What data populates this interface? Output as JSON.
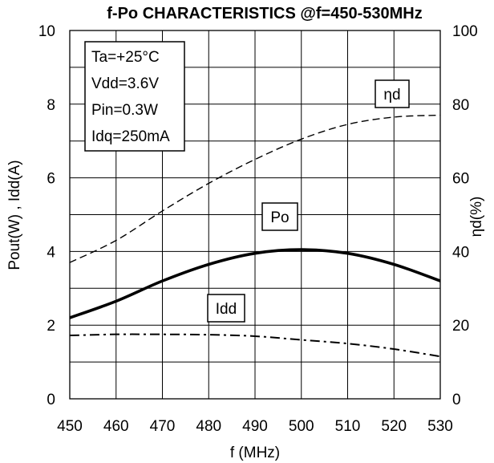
{
  "chart_data": {
    "type": "line",
    "title": "f-Po CHARACTERISTICS @f=450-530MHz",
    "xlabel": "f (MHz)",
    "ylabel_left": "Pout(W) , Idd(A)",
    "ylabel_right": "ηd(%)",
    "xlim": [
      450,
      530
    ],
    "ylim_left": [
      0,
      10
    ],
    "ylim_right": [
      0,
      100
    ],
    "x_ticks": [
      450,
      460,
      470,
      480,
      490,
      500,
      510,
      520,
      530
    ],
    "y_left_ticks": [
      0,
      2,
      4,
      6,
      8,
      10
    ],
    "y_right_ticks": [
      0,
      20,
      40,
      60,
      80,
      100
    ],
    "grid": true,
    "conditions": [
      "Ta=+25°C",
      "Vdd=3.6V",
      "Pin=0.3W",
      "Idq=250mA"
    ],
    "series": [
      {
        "name": "Po",
        "axis": "left",
        "style": "solid",
        "x": [
          450,
          460,
          470,
          480,
          490,
          500,
          510,
          520,
          530
        ],
        "values": [
          2.2,
          2.65,
          3.2,
          3.65,
          3.95,
          4.05,
          3.95,
          3.65,
          3.2
        ]
      },
      {
        "name": "ηd",
        "axis": "right",
        "style": "dashed",
        "x": [
          450,
          460,
          470,
          480,
          490,
          500,
          510,
          520,
          530
        ],
        "values": [
          37,
          43,
          51,
          58.5,
          65,
          70.5,
          74.5,
          76.5,
          77
        ]
      },
      {
        "name": "Idd",
        "axis": "left",
        "style": "dashdot",
        "x": [
          450,
          460,
          470,
          480,
          490,
          500,
          510,
          520,
          530
        ],
        "values": [
          1.72,
          1.75,
          1.75,
          1.74,
          1.7,
          1.6,
          1.5,
          1.35,
          1.15
        ]
      }
    ]
  }
}
